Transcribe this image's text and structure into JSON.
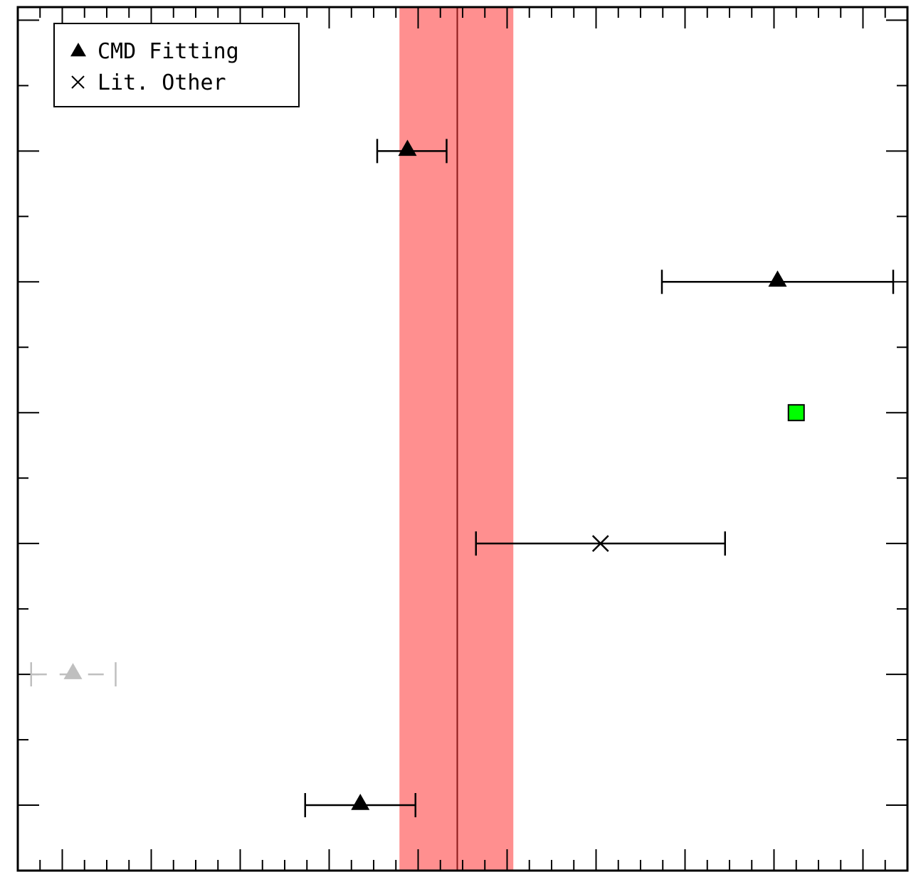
{
  "chart_data": {
    "type": "scatter",
    "title": "",
    "xlabel": "",
    "ylabel": "",
    "xlim": [
      0,
      1000
    ],
    "ylim": [
      0,
      13.2
    ],
    "grid": false,
    "legend": {
      "placement": "top-left",
      "entries": [
        {
          "marker": "triangle",
          "label": "CMD Fitting"
        },
        {
          "marker": "cross",
          "label": "Lit. Other"
        }
      ]
    },
    "reference_line": {
      "x": 494,
      "band": [
        429,
        557
      ],
      "line_color": "#8b1a1a",
      "band_color": "#ff8f8f"
    },
    "series": [
      {
        "marker": "triangle",
        "color": "#000000",
        "points": [
          {
            "x": 438,
            "y": 11,
            "xerr_low": 404,
            "xerr_high": 482
          },
          {
            "x": 854,
            "y": 9,
            "xerr_low": 724,
            "xerr_high": 984
          },
          {
            "x": 385,
            "y": 1,
            "xerr_low": 323,
            "xerr_high": 447
          }
        ]
      },
      {
        "marker": "triangle",
        "color": "#bfbfbf",
        "dashed": true,
        "points": [
          {
            "x": 62,
            "y": 3,
            "xerr_low": 15,
            "xerr_high": 110
          }
        ]
      },
      {
        "marker": "cross",
        "color": "#000000",
        "points": [
          {
            "x": 655,
            "y": 5,
            "xerr_low": 515,
            "xerr_high": 795
          }
        ]
      },
      {
        "marker": "square",
        "color": "#00ff00",
        "points": [
          {
            "x": 875,
            "y": 7
          }
        ]
      }
    ],
    "x_major_ticks": [
      50,
      150,
      250,
      350,
      450,
      550,
      650,
      750,
      850,
      950
    ],
    "x_minor_ticks": [
      0,
      25,
      75,
      100,
      125,
      175,
      200,
      225,
      275,
      300,
      325,
      375,
      400,
      425,
      475,
      500,
      525,
      575,
      600,
      625,
      675,
      700,
      725,
      775,
      800,
      825,
      875,
      900,
      925,
      975,
      1000
    ],
    "y_ticks": [
      1,
      2,
      3,
      4,
      5,
      6,
      7,
      8,
      9,
      10,
      11,
      12,
      13
    ]
  }
}
